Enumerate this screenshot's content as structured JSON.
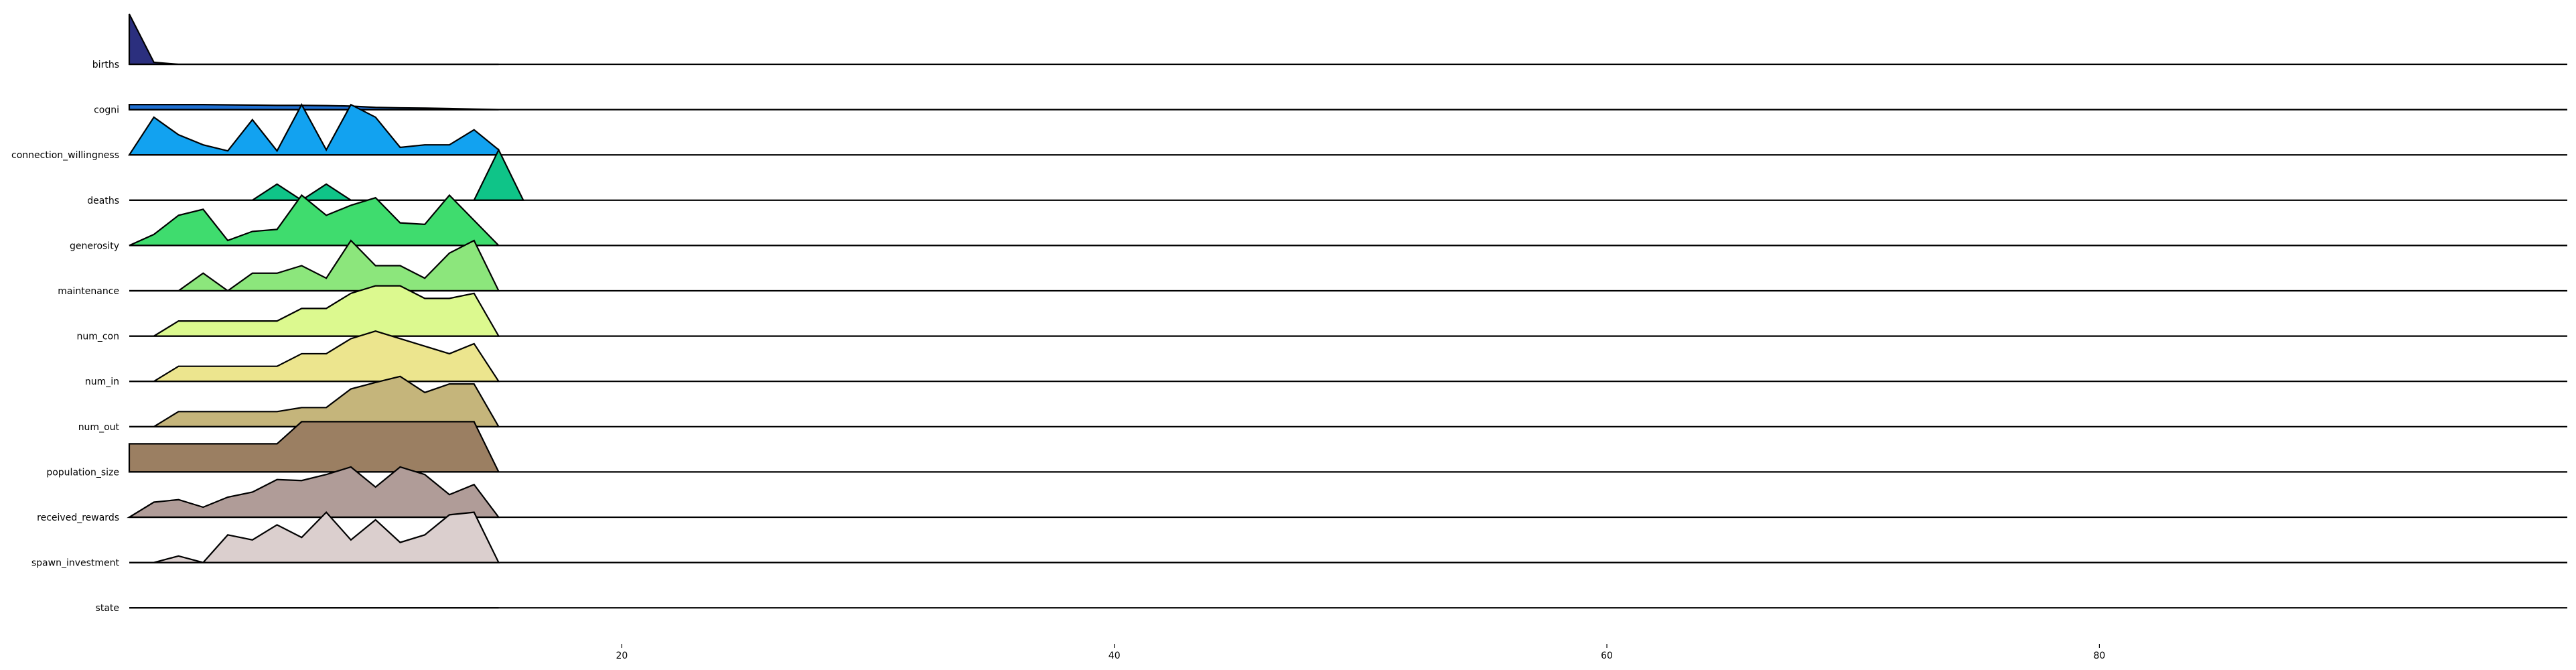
{
  "chart_data": {
    "type": "area",
    "title": "",
    "xlabel": "",
    "ylabel": "",
    "xlim": [
      0,
      99
    ],
    "x_ticks": [
      20,
      40,
      60,
      80
    ],
    "grid": false,
    "legend": "none",
    "series": [
      {
        "name": "births",
        "color": "#2b2f7e",
        "x": [
          0,
          1,
          2,
          3,
          4,
          5,
          6,
          7,
          8,
          9,
          10,
          11,
          12,
          13,
          14,
          15
        ],
        "values": [
          1.0,
          0.04,
          0.0,
          0.0,
          0.0,
          0.0,
          0.0,
          0.0,
          0.0,
          0.0,
          0.0,
          0.0,
          0.0,
          0.0,
          0.0,
          0.0
        ]
      },
      {
        "name": "cogni",
        "color": "#1f6fd1",
        "x": [
          0,
          1,
          2,
          3,
          4,
          5,
          6,
          7,
          8,
          9,
          10,
          11,
          12,
          13,
          14,
          15
        ],
        "values": [
          0.1,
          0.1,
          0.1,
          0.1,
          0.095,
          0.09,
          0.085,
          0.085,
          0.08,
          0.07,
          0.045,
          0.035,
          0.03,
          0.022,
          0.01,
          0.0
        ]
      },
      {
        "name": "connection_willingness",
        "color": "#12a2f0",
        "x": [
          0,
          1,
          2,
          3,
          4,
          5,
          6,
          7,
          8,
          9,
          10,
          11,
          12,
          13,
          14,
          15
        ],
        "values": [
          0.0,
          0.75,
          0.4,
          0.2,
          0.08,
          0.7,
          0.08,
          1.0,
          0.1,
          1.0,
          0.75,
          0.15,
          0.2,
          0.2,
          0.5,
          0.1
        ]
      },
      {
        "name": "deaths",
        "color": "#0fc488",
        "x": [
          0,
          1,
          2,
          3,
          4,
          5,
          6,
          7,
          8,
          9,
          10,
          11,
          12,
          13,
          14,
          15,
          16
        ],
        "values": [
          0.0,
          0.0,
          0.0,
          0.0,
          0.0,
          0.0,
          0.32,
          0.0,
          0.32,
          0.0,
          0.0,
          0.0,
          0.0,
          0.0,
          0.0,
          1.0,
          0.0
        ]
      },
      {
        "name": "generosity",
        "color": "#3fdc6e",
        "x": [
          0,
          1,
          2,
          3,
          4,
          5,
          6,
          7,
          8,
          9,
          10,
          11,
          12,
          13,
          14,
          15
        ],
        "values": [
          0.0,
          0.22,
          0.6,
          0.72,
          0.1,
          0.28,
          0.32,
          1.0,
          0.6,
          0.8,
          0.95,
          0.45,
          0.42,
          1.0,
          0.5,
          0.0
        ]
      },
      {
        "name": "maintenance",
        "color": "#8ce67c",
        "x": [
          0,
          1,
          2,
          3,
          4,
          5,
          6,
          7,
          8,
          9,
          10,
          11,
          12,
          13,
          14,
          15
        ],
        "values": [
          0.0,
          0.0,
          0.0,
          0.35,
          0.0,
          0.35,
          0.35,
          0.5,
          0.25,
          1.0,
          0.5,
          0.5,
          0.25,
          0.75,
          1.0,
          0.0
        ]
      },
      {
        "name": "num_con",
        "color": "#dcf98f",
        "x": [
          0,
          1,
          2,
          3,
          4,
          5,
          6,
          7,
          8,
          9,
          10,
          11,
          12,
          13,
          14,
          15
        ],
        "values": [
          0.0,
          0.0,
          0.3,
          0.3,
          0.3,
          0.3,
          0.3,
          0.55,
          0.55,
          0.85,
          1.0,
          1.0,
          0.75,
          0.75,
          0.85,
          0.0
        ]
      },
      {
        "name": "num_in",
        "color": "#ece58e",
        "x": [
          0,
          1,
          2,
          3,
          4,
          5,
          6,
          7,
          8,
          9,
          10,
          11,
          12,
          13,
          14,
          15
        ],
        "values": [
          0.0,
          0.0,
          0.3,
          0.3,
          0.3,
          0.3,
          0.3,
          0.55,
          0.55,
          0.85,
          1.0,
          0.85,
          0.7,
          0.55,
          0.75,
          0.0
        ]
      },
      {
        "name": "num_out",
        "color": "#c5b57b",
        "x": [
          0,
          1,
          2,
          3,
          4,
          5,
          6,
          7,
          8,
          9,
          10,
          11,
          12,
          13,
          14,
          15
        ],
        "values": [
          0.0,
          0.0,
          0.3,
          0.3,
          0.3,
          0.3,
          0.3,
          0.38,
          0.38,
          0.75,
          0.88,
          1.0,
          0.68,
          0.85,
          0.85,
          0.0
        ]
      },
      {
        "name": "population_size",
        "color": "#9b7f62",
        "x": [
          0,
          1,
          2,
          3,
          4,
          5,
          6,
          7,
          8,
          9,
          10,
          11,
          12,
          13,
          14,
          15
        ],
        "values": [
          0.56,
          0.56,
          0.56,
          0.56,
          0.56,
          0.56,
          0.56,
          1.0,
          1.0,
          1.0,
          1.0,
          1.0,
          1.0,
          1.0,
          1.0,
          0.0
        ]
      },
      {
        "name": "received_rewards",
        "color": "#b09c98",
        "x": [
          0,
          1,
          2,
          3,
          4,
          5,
          6,
          7,
          8,
          9,
          10,
          11,
          12,
          13,
          14,
          15
        ],
        "values": [
          0.0,
          0.3,
          0.35,
          0.2,
          0.4,
          0.5,
          0.75,
          0.73,
          0.85,
          1.0,
          0.6,
          1.0,
          0.85,
          0.45,
          0.65,
          0.0
        ]
      },
      {
        "name": "spawn_investment",
        "color": "#dbcfce",
        "x": [
          0,
          1,
          2,
          3,
          4,
          5,
          6,
          7,
          8,
          9,
          10,
          11,
          12,
          13,
          14,
          15
        ],
        "values": [
          0.0,
          0.0,
          0.13,
          0.0,
          0.55,
          0.45,
          0.75,
          0.5,
          1.0,
          0.45,
          0.85,
          0.4,
          0.55,
          0.95,
          1.0,
          0.0
        ]
      },
      {
        "name": "state",
        "color": "#ffffff",
        "x": [
          0,
          15
        ],
        "values": [
          0.0,
          0.0
        ]
      }
    ]
  }
}
